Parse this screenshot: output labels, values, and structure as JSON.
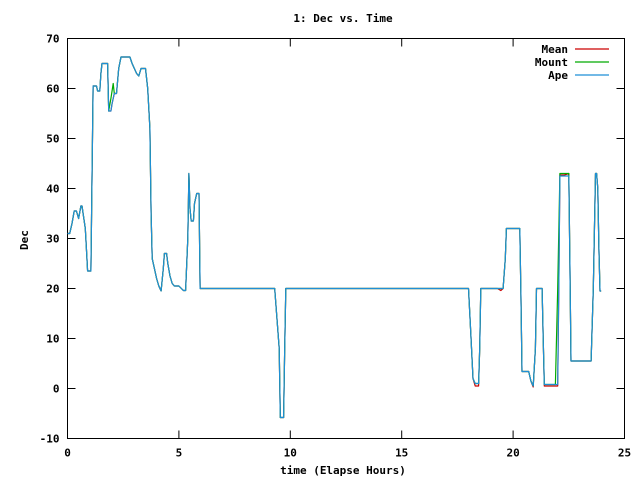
{
  "chart_data": {
    "type": "line",
    "title": "1: Dec vs. Time",
    "xlabel": "time (Elapse Hours)",
    "ylabel": "Dec",
    "xlim": [
      0,
      25
    ],
    "ylim": [
      -10,
      70
    ],
    "xticks": [
      0,
      5,
      10,
      15,
      20,
      25
    ],
    "yticks": [
      -10,
      0,
      10,
      20,
      30,
      40,
      50,
      60,
      70
    ],
    "grid": false,
    "legend_position": "top-right",
    "series": [
      {
        "name": "Mean",
        "color": "#cc0000",
        "points": [
          [
            0,
            31
          ],
          [
            0.1,
            31
          ],
          [
            0.2,
            33
          ],
          [
            0.3,
            35.5
          ],
          [
            0.4,
            35.5
          ],
          [
            0.5,
            34
          ],
          [
            0.6,
            36.5
          ],
          [
            0.65,
            36.5
          ],
          [
            0.7,
            35
          ],
          [
            0.8,
            32
          ],
          [
            0.85,
            28
          ],
          [
            0.9,
            23.5
          ],
          [
            1.05,
            23.5
          ],
          [
            1.1,
            42
          ],
          [
            1.15,
            60.5
          ],
          [
            1.3,
            60.5
          ],
          [
            1.35,
            59.5
          ],
          [
            1.45,
            59.5
          ],
          [
            1.5,
            63
          ],
          [
            1.55,
            65
          ],
          [
            1.8,
            65
          ],
          [
            1.85,
            55.5
          ],
          [
            1.95,
            55.5
          ],
          [
            2.0,
            57
          ],
          [
            2.1,
            59
          ],
          [
            2.2,
            59
          ],
          [
            2.3,
            64
          ],
          [
            2.4,
            66.3
          ],
          [
            2.8,
            66.3
          ],
          [
            2.9,
            65
          ],
          [
            3.1,
            63
          ],
          [
            3.2,
            62.5
          ],
          [
            3.3,
            64
          ],
          [
            3.5,
            64
          ],
          [
            3.6,
            60
          ],
          [
            3.7,
            52
          ],
          [
            3.75,
            35
          ],
          [
            3.8,
            26
          ],
          [
            3.9,
            24
          ],
          [
            4.0,
            22
          ],
          [
            4.1,
            20.5
          ],
          [
            4.2,
            19.5
          ],
          [
            4.3,
            24
          ],
          [
            4.35,
            27
          ],
          [
            4.45,
            27
          ],
          [
            4.5,
            25
          ],
          [
            4.6,
            22.5
          ],
          [
            4.7,
            21
          ],
          [
            4.8,
            20.5
          ],
          [
            5.0,
            20.5
          ],
          [
            5.2,
            19.6
          ],
          [
            5.3,
            19.6
          ],
          [
            5.4,
            30
          ],
          [
            5.45,
            43
          ],
          [
            5.5,
            36
          ],
          [
            5.55,
            33.5
          ],
          [
            5.65,
            33.5
          ],
          [
            5.7,
            37
          ],
          [
            5.8,
            39
          ],
          [
            5.9,
            39
          ],
          [
            5.95,
            20
          ],
          [
            9.3,
            20
          ],
          [
            9.5,
            8
          ],
          [
            9.55,
            -5.8
          ],
          [
            9.7,
            -5.8
          ],
          [
            9.75,
            8
          ],
          [
            9.8,
            20
          ],
          [
            18.0,
            20
          ],
          [
            18.1,
            11
          ],
          [
            18.2,
            2
          ],
          [
            18.3,
            0.5
          ],
          [
            18.45,
            0.5
          ],
          [
            18.5,
            8
          ],
          [
            18.55,
            20
          ],
          [
            19.3,
            20
          ],
          [
            19.45,
            19.6
          ],
          [
            19.55,
            20
          ],
          [
            19.65,
            26
          ],
          [
            19.7,
            32
          ],
          [
            20.3,
            32
          ],
          [
            20.35,
            19
          ],
          [
            20.4,
            3.4
          ],
          [
            20.7,
            3.4
          ],
          [
            20.8,
            1.5
          ],
          [
            20.9,
            0.3
          ],
          [
            21.0,
            8
          ],
          [
            21.05,
            20
          ],
          [
            21.3,
            20
          ],
          [
            21.35,
            10
          ],
          [
            21.4,
            0.5
          ],
          [
            21.9,
            0.5
          ],
          [
            22.0,
            0.5
          ],
          [
            22.05,
            20
          ],
          [
            22.1,
            42.7
          ],
          [
            22.3,
            42.7
          ],
          [
            22.5,
            43
          ],
          [
            22.55,
            25
          ],
          [
            22.6,
            5.5
          ],
          [
            23.5,
            5.5
          ],
          [
            23.6,
            20
          ],
          [
            23.7,
            43
          ],
          [
            23.75,
            43
          ],
          [
            23.8,
            40
          ],
          [
            23.85,
            28
          ],
          [
            23.9,
            19.5
          ],
          [
            23.95,
            19.5
          ]
        ]
      },
      {
        "name": "Mount",
        "color": "#00aa00",
        "points": [
          [
            0,
            31
          ],
          [
            0.1,
            31
          ],
          [
            0.2,
            33
          ],
          [
            0.3,
            35.5
          ],
          [
            0.4,
            35.5
          ],
          [
            0.5,
            34
          ],
          [
            0.6,
            36.5
          ],
          [
            0.65,
            36.5
          ],
          [
            0.7,
            35
          ],
          [
            0.8,
            32
          ],
          [
            0.85,
            28
          ],
          [
            0.9,
            23.5
          ],
          [
            1.05,
            23.5
          ],
          [
            1.1,
            42
          ],
          [
            1.15,
            60.5
          ],
          [
            1.3,
            60.5
          ],
          [
            1.35,
            59.5
          ],
          [
            1.45,
            59.5
          ],
          [
            1.5,
            63
          ],
          [
            1.55,
            65
          ],
          [
            1.8,
            65
          ],
          [
            1.85,
            55.5
          ],
          [
            1.95,
            58
          ],
          [
            2.05,
            61
          ],
          [
            2.1,
            59
          ],
          [
            2.2,
            59
          ],
          [
            2.3,
            64
          ],
          [
            2.4,
            66.3
          ],
          [
            2.8,
            66.3
          ],
          [
            2.9,
            65
          ],
          [
            3.1,
            63
          ],
          [
            3.2,
            62.5
          ],
          [
            3.3,
            64
          ],
          [
            3.5,
            64
          ],
          [
            3.6,
            60
          ],
          [
            3.7,
            52
          ],
          [
            3.75,
            35
          ],
          [
            3.8,
            26
          ],
          [
            3.9,
            24
          ],
          [
            4.0,
            22
          ],
          [
            4.1,
            20.5
          ],
          [
            4.2,
            19.5
          ],
          [
            4.3,
            24
          ],
          [
            4.35,
            27
          ],
          [
            4.45,
            27
          ],
          [
            4.5,
            25
          ],
          [
            4.6,
            22.5
          ],
          [
            4.7,
            21
          ],
          [
            4.8,
            20.5
          ],
          [
            5.0,
            20.5
          ],
          [
            5.2,
            19.6
          ],
          [
            5.3,
            19.6
          ],
          [
            5.4,
            30
          ],
          [
            5.45,
            43
          ],
          [
            5.5,
            36
          ],
          [
            5.55,
            33.5
          ],
          [
            5.65,
            33.5
          ],
          [
            5.7,
            37
          ],
          [
            5.8,
            39
          ],
          [
            5.9,
            39
          ],
          [
            5.95,
            20
          ],
          [
            9.3,
            20
          ],
          [
            9.5,
            8
          ],
          [
            9.55,
            -5.8
          ],
          [
            9.7,
            -5.8
          ],
          [
            9.75,
            8
          ],
          [
            9.8,
            20
          ],
          [
            18.0,
            20
          ],
          [
            18.1,
            11
          ],
          [
            18.2,
            2
          ],
          [
            18.3,
            1
          ],
          [
            18.45,
            1
          ],
          [
            18.5,
            8
          ],
          [
            18.55,
            20
          ],
          [
            19.3,
            20
          ],
          [
            19.45,
            20
          ],
          [
            19.55,
            20
          ],
          [
            19.65,
            26
          ],
          [
            19.7,
            32
          ],
          [
            20.3,
            32
          ],
          [
            20.35,
            19
          ],
          [
            20.4,
            3.4
          ],
          [
            20.7,
            3.4
          ],
          [
            20.8,
            1.5
          ],
          [
            20.9,
            0.5
          ],
          [
            21.0,
            8
          ],
          [
            21.05,
            20
          ],
          [
            21.3,
            20
          ],
          [
            21.35,
            10
          ],
          [
            21.4,
            0.8
          ],
          [
            21.9,
            0.8
          ],
          [
            22.0,
            20
          ],
          [
            22.1,
            43
          ],
          [
            22.3,
            43
          ],
          [
            22.5,
            43
          ],
          [
            22.55,
            25
          ],
          [
            22.6,
            5.5
          ],
          [
            23.5,
            5.5
          ],
          [
            23.6,
            20
          ],
          [
            23.7,
            43
          ],
          [
            23.75,
            43
          ],
          [
            23.8,
            40
          ],
          [
            23.85,
            28
          ],
          [
            23.9,
            19.5
          ],
          [
            23.95,
            19.5
          ]
        ]
      },
      {
        "name": "Ape",
        "color": "#1f8fd6",
        "points": [
          [
            0,
            31
          ],
          [
            0.1,
            31
          ],
          [
            0.2,
            33
          ],
          [
            0.3,
            35.5
          ],
          [
            0.4,
            35.5
          ],
          [
            0.5,
            34
          ],
          [
            0.6,
            36.5
          ],
          [
            0.65,
            36.5
          ],
          [
            0.7,
            35
          ],
          [
            0.8,
            32
          ],
          [
            0.85,
            28
          ],
          [
            0.9,
            23.5
          ],
          [
            1.05,
            23.5
          ],
          [
            1.1,
            42
          ],
          [
            1.15,
            60.5
          ],
          [
            1.3,
            60.5
          ],
          [
            1.35,
            59.5
          ],
          [
            1.45,
            59.5
          ],
          [
            1.5,
            63
          ],
          [
            1.55,
            65
          ],
          [
            1.8,
            65
          ],
          [
            1.85,
            55.5
          ],
          [
            1.95,
            55.5
          ],
          [
            2.0,
            57
          ],
          [
            2.1,
            59
          ],
          [
            2.2,
            59
          ],
          [
            2.3,
            64
          ],
          [
            2.4,
            66.3
          ],
          [
            2.8,
            66.3
          ],
          [
            2.9,
            65
          ],
          [
            3.1,
            63
          ],
          [
            3.2,
            62.5
          ],
          [
            3.3,
            64
          ],
          [
            3.5,
            64
          ],
          [
            3.6,
            60
          ],
          [
            3.7,
            52
          ],
          [
            3.75,
            35
          ],
          [
            3.8,
            26
          ],
          [
            3.9,
            24
          ],
          [
            4.0,
            22
          ],
          [
            4.1,
            20.5
          ],
          [
            4.2,
            19.5
          ],
          [
            4.3,
            24
          ],
          [
            4.35,
            27
          ],
          [
            4.45,
            27
          ],
          [
            4.5,
            25
          ],
          [
            4.6,
            22.5
          ],
          [
            4.7,
            21
          ],
          [
            4.8,
            20.5
          ],
          [
            5.0,
            20.5
          ],
          [
            5.2,
            19.6
          ],
          [
            5.3,
            19.6
          ],
          [
            5.4,
            30
          ],
          [
            5.45,
            43
          ],
          [
            5.5,
            36
          ],
          [
            5.55,
            33.5
          ],
          [
            5.65,
            33.5
          ],
          [
            5.7,
            37
          ],
          [
            5.8,
            39
          ],
          [
            5.9,
            39
          ],
          [
            5.95,
            20
          ],
          [
            9.3,
            20
          ],
          [
            9.5,
            8
          ],
          [
            9.55,
            -5.8
          ],
          [
            9.7,
            -5.8
          ],
          [
            9.75,
            8
          ],
          [
            9.8,
            20
          ],
          [
            14.2,
            20
          ],
          [
            18.0,
            20
          ],
          [
            18.1,
            11
          ],
          [
            18.2,
            2
          ],
          [
            18.3,
            1
          ],
          [
            18.45,
            1
          ],
          [
            18.5,
            8
          ],
          [
            18.55,
            20
          ],
          [
            19.3,
            20
          ],
          [
            19.45,
            20
          ],
          [
            19.55,
            20
          ],
          [
            19.65,
            26
          ],
          [
            19.7,
            32
          ],
          [
            20.3,
            32
          ],
          [
            20.35,
            19
          ],
          [
            20.4,
            3.4
          ],
          [
            20.7,
            3.4
          ],
          [
            20.8,
            1.5
          ],
          [
            20.9,
            0.5
          ],
          [
            21.0,
            8
          ],
          [
            21.05,
            20
          ],
          [
            21.3,
            20
          ],
          [
            21.35,
            10
          ],
          [
            21.4,
            0.8
          ],
          [
            21.9,
            0.8
          ],
          [
            22.0,
            0.8
          ],
          [
            22.05,
            20
          ],
          [
            22.1,
            42.5
          ],
          [
            22.3,
            42.5
          ],
          [
            22.5,
            42.5
          ],
          [
            22.55,
            25
          ],
          [
            22.6,
            5.5
          ],
          [
            23.5,
            5.5
          ],
          [
            23.6,
            20
          ],
          [
            23.7,
            43
          ],
          [
            23.75,
            43
          ],
          [
            23.8,
            40
          ],
          [
            23.85,
            28
          ],
          [
            23.9,
            19.5
          ],
          [
            23.95,
            19.5
          ]
        ]
      }
    ]
  }
}
